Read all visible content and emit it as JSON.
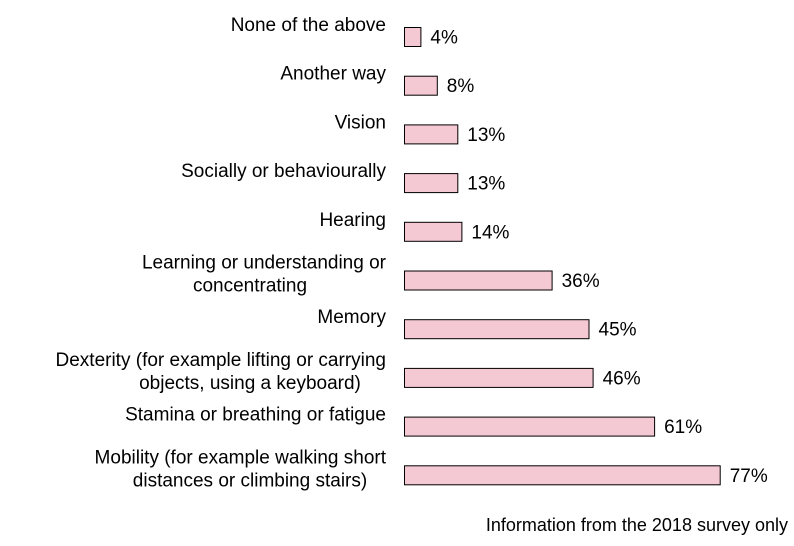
{
  "chart_data": {
    "type": "bar",
    "orientation": "horizontal",
    "categories": [
      "None of the above",
      "Another way",
      "Vision",
      "Socially or behaviourally",
      "Hearing",
      "Learning or understanding or concentrating",
      "Memory",
      "Dexterity (for example lifting or carrying objects, using a keyboard)",
      "Stamina or breathing or fatigue",
      "Mobility (for example walking short distances or climbing stairs)"
    ],
    "category_lines": [
      [
        "None of the above"
      ],
      [
        "Another way"
      ],
      [
        "Vision"
      ],
      [
        "Socially or behaviourally"
      ],
      [
        "Hearing"
      ],
      [
        "Learning or understanding or",
        "concentrating"
      ],
      [
        "Memory"
      ],
      [
        "Dexterity (for example lifting or carrying",
        "objects, using a keyboard)"
      ],
      [
        "Stamina or breathing or fatigue"
      ],
      [
        "Mobility (for example walking short",
        "distances or climbing stairs)"
      ]
    ],
    "values": [
      4,
      8,
      13,
      13,
      14,
      36,
      45,
      46,
      61,
      77
    ],
    "value_labels": [
      "4%",
      "8%",
      "13%",
      "13%",
      "14%",
      "36%",
      "45%",
      "46%",
      "61%",
      "77%"
    ],
    "unit": "%",
    "xlim": [
      0,
      100
    ],
    "grid": false,
    "legend": "none",
    "bar_color": "#f4c9d3",
    "bar_outline": "#000000",
    "title": "",
    "xlabel": "",
    "ylabel": ""
  },
  "footnote": "Information from the 2018 survey only"
}
